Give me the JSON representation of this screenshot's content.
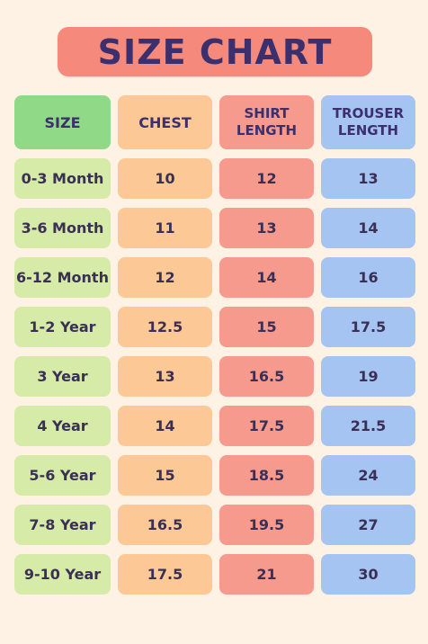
{
  "title": "SIZE CHART",
  "headers": {
    "size": "SIZE",
    "chest": "CHEST",
    "shirt_line1": "SHIRT",
    "shirt_line2": "LENGTH",
    "trouser_line1": "TROUSER",
    "trouser_line2": "LENGTH"
  },
  "rows": [
    {
      "size": "0-3 Month",
      "chest": "10",
      "shirt": "12",
      "trouser": "13"
    },
    {
      "size": "3-6 Month",
      "chest": "11",
      "shirt": "13",
      "trouser": "14"
    },
    {
      "size": "6-12 Month",
      "chest": "12",
      "shirt": "14",
      "trouser": "16"
    },
    {
      "size": "1-2 Year",
      "chest": "12.5",
      "shirt": "15",
      "trouser": "17.5"
    },
    {
      "size": "3 Year",
      "chest": "13",
      "shirt": "16.5",
      "trouser": "19"
    },
    {
      "size": "4 Year",
      "chest": "14",
      "shirt": "17.5",
      "trouser": "21.5"
    },
    {
      "size": "5-6 Year",
      "chest": "15",
      "shirt": "18.5",
      "trouser": "24"
    },
    {
      "size": "7-8 Year",
      "chest": "16.5",
      "shirt": "19.5",
      "trouser": "27"
    },
    {
      "size": "9-10 Year",
      "chest": "17.5",
      "shirt": "21",
      "trouser": "30"
    }
  ],
  "colors": {
    "background": "#fdf2e3",
    "title_bg": "#f58a7c",
    "title_text": "#3b2f6e",
    "size_header": "#8fd987",
    "size_cells": "#d6eba7",
    "chest": "#fcc896",
    "shirt": "#f69a8e",
    "trouser": "#a6c4f2"
  }
}
